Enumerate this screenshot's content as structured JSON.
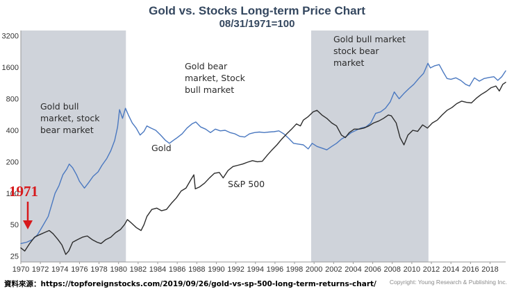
{
  "chart_data": {
    "type": "line",
    "title": "Gold vs. Stocks Long-term Price Chart",
    "subtitle": "08/31/1971=100",
    "y_scale": "log2",
    "ylim": [
      22,
      3600
    ],
    "xlim": [
      1970,
      2019.6
    ],
    "y_ticks": [
      25,
      50,
      100,
      200,
      400,
      800,
      1600,
      3200
    ],
    "x_ticks": [
      1970,
      1972,
      1974,
      1976,
      1978,
      1980,
      1982,
      1984,
      1986,
      1988,
      1990,
      1992,
      1994,
      1996,
      1998,
      2000,
      2002,
      2004,
      2006,
      2008,
      2010,
      2012,
      2014,
      2016,
      2018
    ],
    "shaded_periods": [
      [
        1970,
        1980.75
      ],
      [
        1999.7,
        2011.7
      ]
    ],
    "series": [
      {
        "name": "Gold",
        "color": "#4a78c0",
        "points": [
          [
            1970.0,
            33
          ],
          [
            1970.6,
            34
          ],
          [
            1971.2,
            36
          ],
          [
            1971.7,
            40
          ],
          [
            1972.2,
            48
          ],
          [
            1972.8,
            60
          ],
          [
            1973.2,
            80
          ],
          [
            1973.5,
            100
          ],
          [
            1973.9,
            118
          ],
          [
            1974.3,
            150
          ],
          [
            1974.7,
            170
          ],
          [
            1974.95,
            190
          ],
          [
            1975.3,
            175
          ],
          [
            1975.7,
            150
          ],
          [
            1976.0,
            130
          ],
          [
            1976.5,
            112
          ],
          [
            1976.9,
            125
          ],
          [
            1977.4,
            145
          ],
          [
            1977.9,
            160
          ],
          [
            1978.3,
            185
          ],
          [
            1978.8,
            215
          ],
          [
            1979.2,
            255
          ],
          [
            1979.6,
            320
          ],
          [
            1979.9,
            430
          ],
          [
            1980.1,
            630
          ],
          [
            1980.4,
            520
          ],
          [
            1980.7,
            650
          ],
          [
            1981.0,
            560
          ],
          [
            1981.4,
            470
          ],
          [
            1981.8,
            420
          ],
          [
            1982.2,
            360
          ],
          [
            1982.6,
            390
          ],
          [
            1982.9,
            440
          ],
          [
            1983.3,
            420
          ],
          [
            1983.8,
            400
          ],
          [
            1984.3,
            360
          ],
          [
            1984.8,
            320
          ],
          [
            1985.2,
            300
          ],
          [
            1985.6,
            320
          ],
          [
            1986.0,
            340
          ],
          [
            1986.5,
            370
          ],
          [
            1987.0,
            420
          ],
          [
            1987.5,
            460
          ],
          [
            1987.9,
            480
          ],
          [
            1988.4,
            430
          ],
          [
            1988.9,
            410
          ],
          [
            1989.4,
            380
          ],
          [
            1989.9,
            410
          ],
          [
            1990.4,
            395
          ],
          [
            1990.9,
            400
          ],
          [
            1991.4,
            380
          ],
          [
            1991.9,
            370
          ],
          [
            1992.4,
            350
          ],
          [
            1992.9,
            345
          ],
          [
            1993.4,
            370
          ],
          [
            1993.9,
            380
          ],
          [
            1994.4,
            385
          ],
          [
            1994.9,
            380
          ],
          [
            1995.4,
            385
          ],
          [
            1995.9,
            388
          ],
          [
            1996.4,
            395
          ],
          [
            1996.9,
            370
          ],
          [
            1997.4,
            335
          ],
          [
            1997.9,
            300
          ],
          [
            1998.4,
            295
          ],
          [
            1998.9,
            290
          ],
          [
            1999.4,
            265
          ],
          [
            1999.8,
            300
          ],
          [
            2000.3,
            280
          ],
          [
            2000.8,
            270
          ],
          [
            2001.3,
            260
          ],
          [
            2001.8,
            280
          ],
          [
            2002.3,
            300
          ],
          [
            2002.8,
            330
          ],
          [
            2003.3,
            350
          ],
          [
            2003.8,
            380
          ],
          [
            2004.3,
            400
          ],
          [
            2004.8,
            420
          ],
          [
            2005.3,
            430
          ],
          [
            2005.8,
            470
          ],
          [
            2006.3,
            580
          ],
          [
            2006.8,
            600
          ],
          [
            2007.3,
            650
          ],
          [
            2007.8,
            750
          ],
          [
            2008.2,
            930
          ],
          [
            2008.7,
            800
          ],
          [
            2009.2,
            900
          ],
          [
            2009.7,
            1000
          ],
          [
            2010.2,
            1100
          ],
          [
            2010.7,
            1250
          ],
          [
            2011.2,
            1400
          ],
          [
            2011.65,
            1750
          ],
          [
            2011.9,
            1580
          ],
          [
            2012.3,
            1650
          ],
          [
            2012.8,
            1700
          ],
          [
            2013.2,
            1450
          ],
          [
            2013.6,
            1250
          ],
          [
            2014.0,
            1230
          ],
          [
            2014.5,
            1270
          ],
          [
            2015.0,
            1200
          ],
          [
            2015.5,
            1100
          ],
          [
            2015.9,
            1060
          ],
          [
            2016.4,
            1270
          ],
          [
            2016.9,
            1180
          ],
          [
            2017.4,
            1250
          ],
          [
            2017.9,
            1280
          ],
          [
            2018.4,
            1300
          ],
          [
            2018.8,
            1200
          ],
          [
            2019.2,
            1300
          ],
          [
            2019.6,
            1480
          ]
        ]
      },
      {
        "name": "S&P 500",
        "color": "#2b2b2b",
        "points": [
          [
            1970.0,
            30
          ],
          [
            1970.4,
            28
          ],
          [
            1970.9,
            33
          ],
          [
            1971.4,
            38
          ],
          [
            1971.9,
            40
          ],
          [
            1972.4,
            42
          ],
          [
            1972.9,
            44
          ],
          [
            1973.3,
            41
          ],
          [
            1973.8,
            36
          ],
          [
            1974.2,
            32
          ],
          [
            1974.6,
            26
          ],
          [
            1974.9,
            28
          ],
          [
            1975.3,
            34
          ],
          [
            1975.8,
            36
          ],
          [
            1976.3,
            38
          ],
          [
            1976.8,
            39
          ],
          [
            1977.3,
            36
          ],
          [
            1977.8,
            34
          ],
          [
            1978.2,
            33
          ],
          [
            1978.7,
            36
          ],
          [
            1979.2,
            38
          ],
          [
            1979.7,
            42
          ],
          [
            1980.2,
            45
          ],
          [
            1980.6,
            50
          ],
          [
            1980.9,
            56
          ],
          [
            1981.3,
            52
          ],
          [
            1981.8,
            47
          ],
          [
            1982.3,
            44
          ],
          [
            1982.6,
            50
          ],
          [
            1982.9,
            60
          ],
          [
            1983.4,
            70
          ],
          [
            1983.9,
            72
          ],
          [
            1984.4,
            68
          ],
          [
            1984.9,
            70
          ],
          [
            1985.4,
            80
          ],
          [
            1985.9,
            90
          ],
          [
            1986.4,
            105
          ],
          [
            1986.9,
            112
          ],
          [
            1987.4,
            135
          ],
          [
            1987.7,
            150
          ],
          [
            1987.85,
            110
          ],
          [
            1988.3,
            115
          ],
          [
            1988.8,
            125
          ],
          [
            1989.3,
            140
          ],
          [
            1989.8,
            155
          ],
          [
            1990.3,
            158
          ],
          [
            1990.7,
            140
          ],
          [
            1991.2,
            165
          ],
          [
            1991.7,
            180
          ],
          [
            1992.2,
            185
          ],
          [
            1992.7,
            190
          ],
          [
            1993.2,
            198
          ],
          [
            1993.7,
            205
          ],
          [
            1994.2,
            200
          ],
          [
            1994.7,
            202
          ],
          [
            1995.2,
            230
          ],
          [
            1995.7,
            260
          ],
          [
            1996.2,
            290
          ],
          [
            1996.7,
            330
          ],
          [
            1997.2,
            370
          ],
          [
            1997.7,
            410
          ],
          [
            1998.2,
            460
          ],
          [
            1998.6,
            440
          ],
          [
            1998.9,
            500
          ],
          [
            1999.4,
            540
          ],
          [
            1999.9,
            600
          ],
          [
            2000.3,
            620
          ],
          [
            2000.8,
            560
          ],
          [
            2001.3,
            520
          ],
          [
            2001.8,
            470
          ],
          [
            2002.3,
            440
          ],
          [
            2002.8,
            360
          ],
          [
            2003.2,
            340
          ],
          [
            2003.6,
            380
          ],
          [
            2004.1,
            410
          ],
          [
            2004.6,
            410
          ],
          [
            2005.1,
            420
          ],
          [
            2005.6,
            440
          ],
          [
            2006.1,
            470
          ],
          [
            2006.6,
            490
          ],
          [
            2007.1,
            520
          ],
          [
            2007.6,
            560
          ],
          [
            2007.9,
            550
          ],
          [
            2008.4,
            470
          ],
          [
            2008.8,
            340
          ],
          [
            2009.2,
            290
          ],
          [
            2009.6,
            360
          ],
          [
            2010.1,
            400
          ],
          [
            2010.6,
            390
          ],
          [
            2011.1,
            450
          ],
          [
            2011.6,
            420
          ],
          [
            2012.1,
            470
          ],
          [
            2012.6,
            500
          ],
          [
            2013.1,
            560
          ],
          [
            2013.6,
            620
          ],
          [
            2014.1,
            660
          ],
          [
            2014.6,
            720
          ],
          [
            2015.1,
            760
          ],
          [
            2015.6,
            740
          ],
          [
            2016.1,
            730
          ],
          [
            2016.6,
            810
          ],
          [
            2017.1,
            880
          ],
          [
            2017.6,
            940
          ],
          [
            2018.1,
            1020
          ],
          [
            2018.6,
            1060
          ],
          [
            2018.95,
            950
          ],
          [
            2019.3,
            1100
          ],
          [
            2019.6,
            1150
          ]
        ]
      }
    ],
    "annotations": [
      {
        "id": "bull1",
        "lines": [
          "Gold bull",
          "market, stock",
          "bear market"
        ]
      },
      {
        "id": "bear",
        "lines": [
          "Gold bear",
          "market, Stock",
          "bull market"
        ]
      },
      {
        "id": "bull2",
        "lines": [
          "Gold bull market",
          "stock bear",
          "market"
        ]
      },
      {
        "id": "gold-label",
        "lines": [
          "Gold"
        ]
      },
      {
        "id": "sp-label",
        "lines": [
          "S&P 500"
        ]
      }
    ],
    "callout": {
      "text": "1971",
      "color": "#d7191c"
    },
    "colors": {
      "shade": "#cfd3da",
      "axis_text": "#333333",
      "title": "#34475f"
    }
  },
  "footer": {
    "source": "資料來源：https://topforeignstocks.com/2019/09/26/gold-vs-sp-500-long-term-returns-chart/",
    "credit": "Copyright: Young Research & Publishing Inc."
  }
}
